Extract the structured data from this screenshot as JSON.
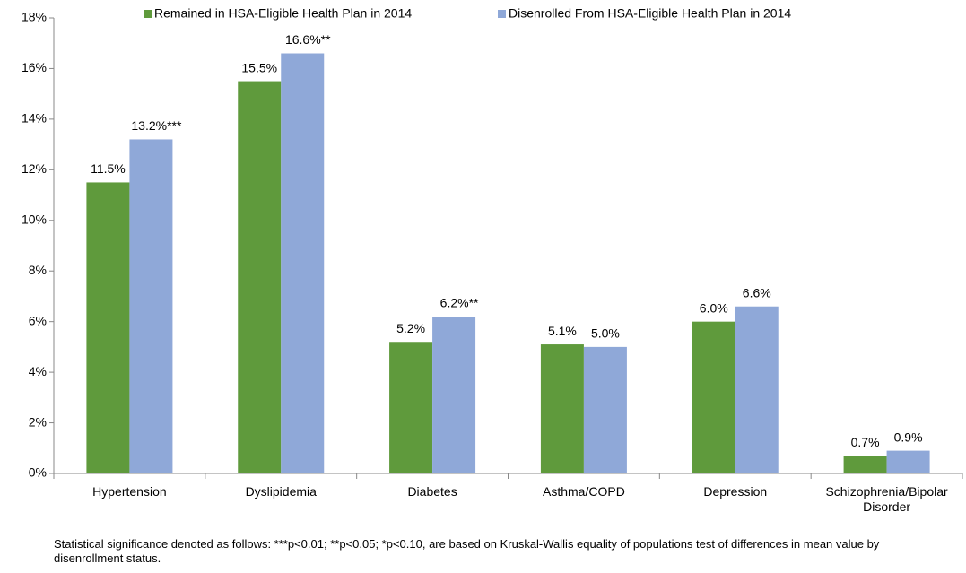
{
  "chart_data": {
    "type": "bar",
    "categories": [
      "Hypertension",
      "Dyslipidemia",
      "Diabetes",
      "Asthma/COPD",
      "Depression",
      "Schizophrenia/Bipolar Disorder"
    ],
    "series": [
      {
        "name": "Remained in HSA-Eligible Health Plan in 2014",
        "color": "#5f9a3c",
        "values": [
          11.5,
          15.5,
          5.2,
          5.1,
          6.0,
          0.7
        ],
        "value_labels": [
          "11.5%",
          "15.5%",
          "5.2%",
          "5.1%",
          "6.0%",
          "0.7%"
        ]
      },
      {
        "name": "Disenrolled From HSA-Eligible Health Plan in 2014",
        "color": "#8fa8d8",
        "values": [
          13.2,
          16.6,
          6.2,
          5.0,
          6.6,
          0.9
        ],
        "value_labels": [
          "13.2%***",
          "16.6%**",
          "6.2%**",
          "5.0%",
          "6.6%",
          "0.9%"
        ]
      }
    ],
    "ylim": [
      0,
      18
    ],
    "yticks": [
      {
        "value": 0,
        "label": "0%"
      },
      {
        "value": 2,
        "label": "2%"
      },
      {
        "value": 4,
        "label": "4%"
      },
      {
        "value": 6,
        "label": "6%"
      },
      {
        "value": 8,
        "label": "8%"
      },
      {
        "value": 10,
        "label": "10%"
      },
      {
        "value": 12,
        "label": "12%"
      },
      {
        "value": 14,
        "label": "14%"
      },
      {
        "value": 16,
        "label": "16%"
      },
      {
        "value": 18,
        "label": "18%"
      }
    ],
    "legend": "top",
    "note": "Statistical significance denoted as follows: ***p<0.01; **p<0.05; *p<0.10, are based on Kruskal-Wallis equality of populations test of differences in mean value by disenrollment status."
  }
}
